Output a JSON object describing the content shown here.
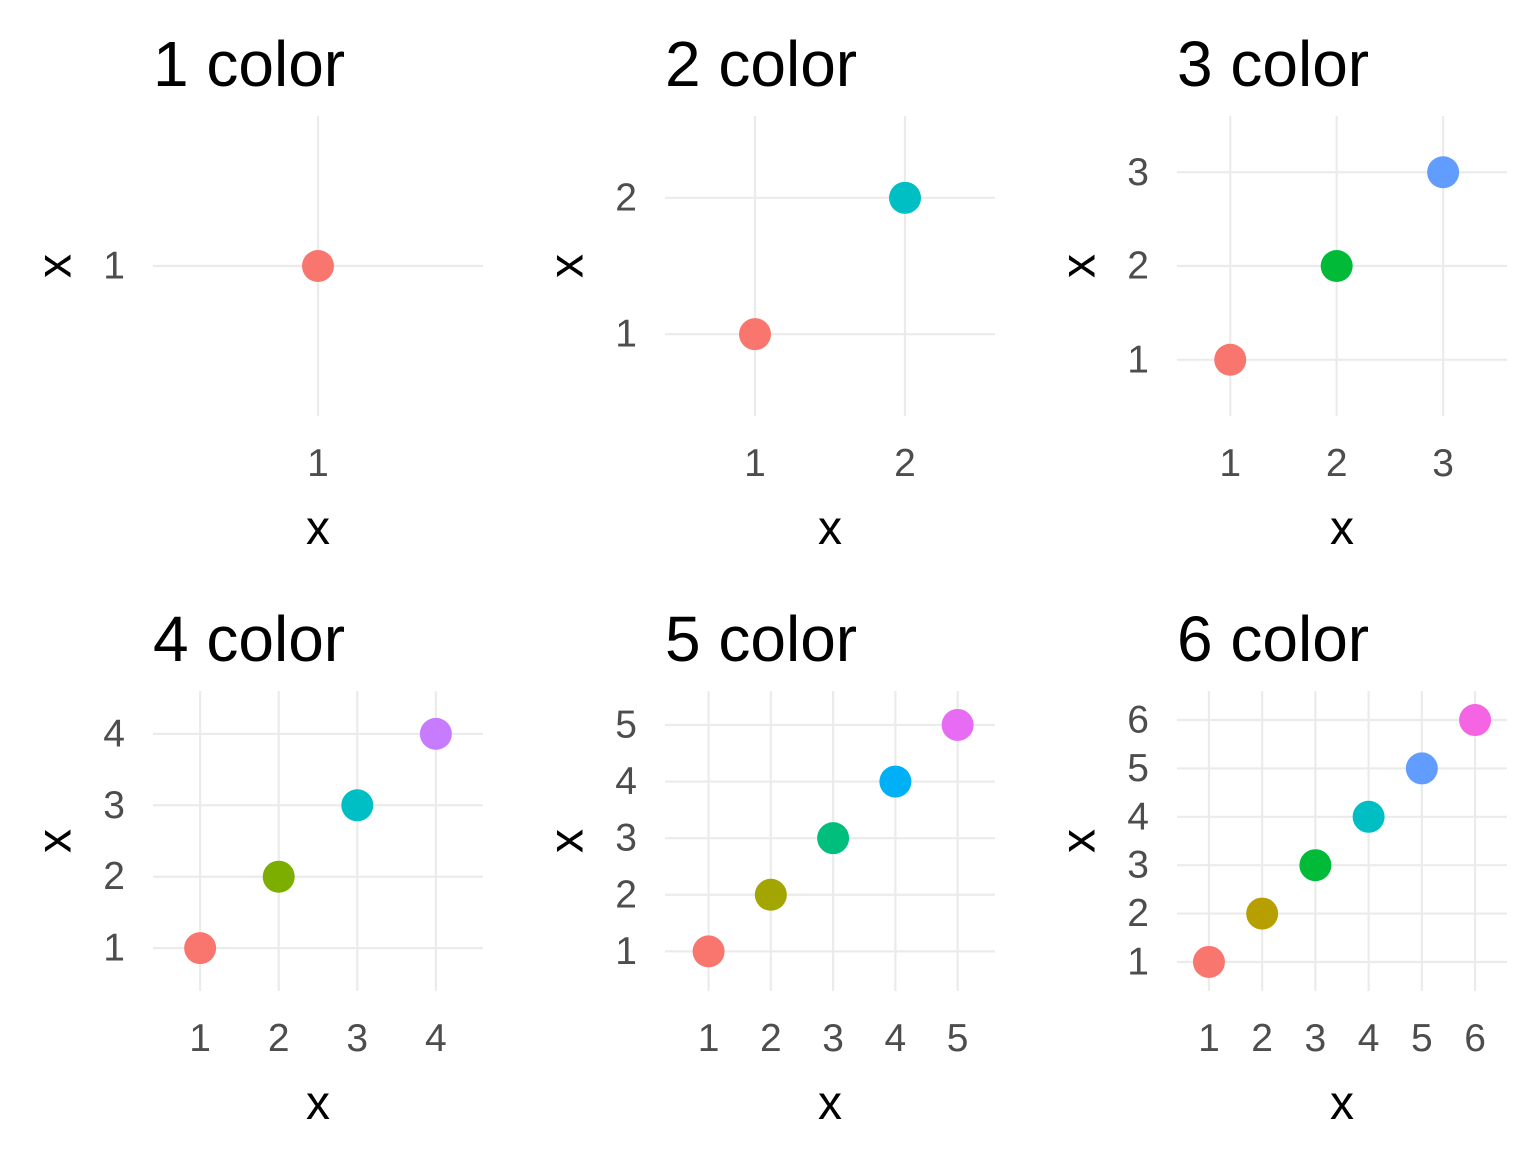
{
  "chart_data": [
    {
      "type": "scatter",
      "title": "1 color",
      "xlabel": "x",
      "ylabel": "x",
      "x": [
        1
      ],
      "y": [
        1
      ],
      "colors": [
        "#F8766D"
      ],
      "xlim": [
        0.4,
        1.6
      ],
      "ylim": [
        0.4,
        1.6
      ],
      "xticks": [
        "1"
      ],
      "yticks": [
        "1"
      ],
      "grid": true,
      "legend": "none"
    },
    {
      "type": "scatter",
      "title": "2 color",
      "xlabel": "x",
      "ylabel": "x",
      "x": [
        1,
        2
      ],
      "y": [
        1,
        2
      ],
      "colors": [
        "#F8766D",
        "#00BFC4"
      ],
      "xlim": [
        0.4,
        2.6
      ],
      "ylim": [
        0.4,
        2.6
      ],
      "xticks": [
        "1",
        "2"
      ],
      "yticks": [
        "1",
        "2"
      ],
      "grid": true,
      "legend": "none"
    },
    {
      "type": "scatter",
      "title": "3 color",
      "xlabel": "x",
      "ylabel": "x",
      "x": [
        1,
        2,
        3
      ],
      "y": [
        1,
        2,
        3
      ],
      "colors": [
        "#F8766D",
        "#00BA38",
        "#619CFF"
      ],
      "xlim": [
        0.5,
        3.6
      ],
      "ylim": [
        0.4,
        3.6
      ],
      "xticks": [
        "1",
        "2",
        "3"
      ],
      "yticks": [
        "1",
        "2",
        "3"
      ],
      "grid": true,
      "legend": "none"
    },
    {
      "type": "scatter",
      "title": "4 color",
      "xlabel": "x",
      "ylabel": "x",
      "x": [
        1,
        2,
        3,
        4
      ],
      "y": [
        1,
        2,
        3,
        4
      ],
      "colors": [
        "#F8766D",
        "#7CAE00",
        "#00BFC4",
        "#C77CFF"
      ],
      "xlim": [
        0.4,
        4.6
      ],
      "ylim": [
        0.4,
        4.6
      ],
      "xticks": [
        "1",
        "2",
        "3",
        "4"
      ],
      "yticks": [
        "1",
        "2",
        "3",
        "4"
      ],
      "grid": true,
      "legend": "none"
    },
    {
      "type": "scatter",
      "title": "5 color",
      "xlabel": "x",
      "ylabel": "x",
      "x": [
        1,
        2,
        3,
        4,
        5
      ],
      "y": [
        1,
        2,
        3,
        4,
        5
      ],
      "colors": [
        "#F8766D",
        "#A3A500",
        "#00BF7D",
        "#00B0F6",
        "#E76BF3"
      ],
      "xlim": [
        0.3,
        5.6
      ],
      "ylim": [
        0.3,
        5.6
      ],
      "xticks": [
        "1",
        "2",
        "3",
        "4",
        "5"
      ],
      "yticks": [
        "1",
        "2",
        "3",
        "4",
        "5"
      ],
      "grid": true,
      "legend": "none"
    },
    {
      "type": "scatter",
      "title": "6 color",
      "xlabel": "x",
      "ylabel": "x",
      "x": [
        1,
        2,
        3,
        4,
        5,
        6
      ],
      "y": [
        1,
        2,
        3,
        4,
        5,
        6
      ],
      "colors": [
        "#F8766D",
        "#B79F00",
        "#00BA38",
        "#00BFC4",
        "#619CFF",
        "#F564E3"
      ],
      "xlim": [
        0.4,
        6.6
      ],
      "ylim": [
        0.4,
        6.6
      ],
      "xticks": [
        "1",
        "2",
        "3",
        "4",
        "5",
        "6"
      ],
      "yticks": [
        "1",
        "2",
        "3",
        "4",
        "5",
        "6"
      ],
      "grid": true,
      "legend": "none"
    }
  ]
}
